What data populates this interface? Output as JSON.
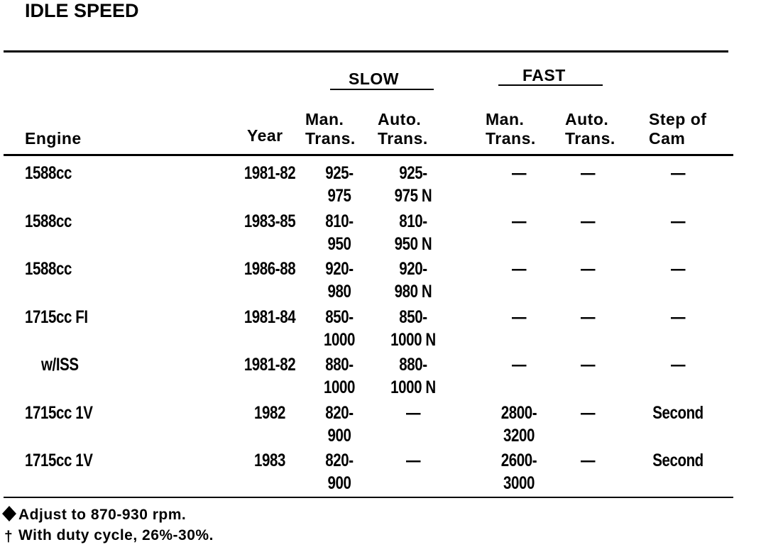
{
  "title": "IDLE SPEED",
  "groups": {
    "slow": "SLOW",
    "fast": "FAST"
  },
  "table": {
    "header": [
      [
        "Engine"
      ],
      [
        "Year"
      ],
      [
        "Man.",
        "Trans."
      ],
      [
        "Auto.",
        "Trans."
      ],
      [
        "Man.",
        "Trans."
      ],
      [
        "Auto.",
        "Trans."
      ],
      [
        "Step of",
        "Cam"
      ]
    ],
    "rows": [
      {
        "cells": [
          [
            "1588cc"
          ],
          [
            "1981-82"
          ],
          [
            "925-",
            "975"
          ],
          [
            "925-",
            "975 N"
          ],
          [
            "—"
          ],
          [
            "—"
          ],
          [
            "—"
          ]
        ]
      },
      {
        "cells": [
          [
            "1588cc"
          ],
          [
            "1983-85"
          ],
          [
            "810-",
            "950"
          ],
          [
            "810-",
            "950 N"
          ],
          [
            "—"
          ],
          [
            "—"
          ],
          [
            "—"
          ]
        ]
      },
      {
        "cells": [
          [
            "1588cc"
          ],
          [
            "1986-88"
          ],
          [
            "920-",
            "980"
          ],
          [
            "920-",
            "980 N"
          ],
          [
            "—"
          ],
          [
            "—"
          ],
          [
            "—"
          ]
        ]
      },
      {
        "cells": [
          [
            "1715cc FI"
          ],
          [
            "1981-84"
          ],
          [
            "850-",
            "1000"
          ],
          [
            "850-",
            "1000 N"
          ],
          [
            "—"
          ],
          [
            "—"
          ],
          [
            "—"
          ]
        ]
      },
      {
        "cells": [
          [
            "w/ISS"
          ],
          [
            "1981-82"
          ],
          [
            "880-",
            "1000"
          ],
          [
            "880-",
            "1000 N"
          ],
          [
            "—"
          ],
          [
            "—"
          ],
          [
            "—"
          ]
        ]
      },
      {
        "cells": [
          [
            "1715cc 1V"
          ],
          [
            "1982"
          ],
          [
            "820-",
            "900"
          ],
          [
            "—"
          ],
          [
            "2800-",
            "3200"
          ],
          [
            "—"
          ],
          [
            "Second"
          ]
        ]
      },
      {
        "cells": [
          [
            "1715cc 1V"
          ],
          [
            "1983"
          ],
          [
            "820-",
            "900"
          ],
          [
            "—"
          ],
          [
            "2600-",
            "3000"
          ],
          [
            "—"
          ],
          [
            "Second"
          ]
        ]
      }
    ]
  },
  "footnotes": [
    {
      "mark": "",
      "text": "Adjust to 870-930 rpm."
    },
    {
      "mark": "†",
      "text": "With duty cycle, 26%-30%."
    }
  ]
}
